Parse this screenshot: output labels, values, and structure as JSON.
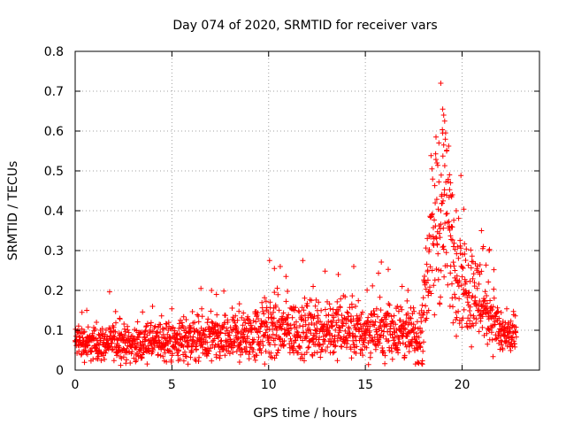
{
  "chart_data": {
    "type": "scatter",
    "title": "Day 074 of 2020, SRMTID for receiver vars",
    "xlabel": "GPS time / hours",
    "ylabel": "SRMTID / TECUs",
    "xlim": [
      0,
      24
    ],
    "ylim": [
      0,
      0.8
    ],
    "x_ticks": [
      0,
      5,
      10,
      15,
      20
    ],
    "y_ticks": [
      0,
      0.1,
      0.2,
      0.3,
      0.4,
      0.5,
      0.6,
      0.7,
      0.8
    ],
    "x_tick_labels": [
      "0",
      "5",
      "10",
      "15",
      "20"
    ],
    "y_tick_labels": [
      "0",
      "0.1",
      "0.2",
      "0.3",
      "0.4",
      "0.5",
      "0.6",
      "0.7",
      "0.8"
    ],
    "grid": true,
    "marker": "+",
    "color": "#ff0000",
    "x_data_range": [
      0,
      22.8
    ],
    "profile": [
      [
        0.0,
        0.07,
        0.03
      ],
      [
        1.0,
        0.065,
        0.03
      ],
      [
        2.0,
        0.07,
        0.03
      ],
      [
        3.0,
        0.065,
        0.03
      ],
      [
        4.0,
        0.07,
        0.03
      ],
      [
        5.0,
        0.07,
        0.035
      ],
      [
        6.0,
        0.08,
        0.045
      ],
      [
        7.0,
        0.075,
        0.04
      ],
      [
        8.0,
        0.075,
        0.04
      ],
      [
        9.0,
        0.085,
        0.045
      ],
      [
        10.0,
        0.1,
        0.06
      ],
      [
        11.0,
        0.1,
        0.055
      ],
      [
        12.0,
        0.1,
        0.05
      ],
      [
        13.0,
        0.105,
        0.055
      ],
      [
        14.0,
        0.1,
        0.05
      ],
      [
        15.0,
        0.095,
        0.05
      ],
      [
        16.0,
        0.1,
        0.05
      ],
      [
        17.0,
        0.1,
        0.05
      ],
      [
        17.8,
        0.06,
        0.04
      ],
      [
        18.2,
        0.25,
        0.12
      ],
      [
        18.6,
        0.35,
        0.16
      ],
      [
        19.0,
        0.4,
        0.16
      ],
      [
        19.4,
        0.33,
        0.14
      ],
      [
        19.8,
        0.25,
        0.1
      ],
      [
        20.2,
        0.22,
        0.09
      ],
      [
        20.8,
        0.18,
        0.08
      ],
      [
        21.5,
        0.14,
        0.06
      ],
      [
        22.0,
        0.09,
        0.04
      ],
      [
        22.8,
        0.08,
        0.03
      ]
    ],
    "points": [
      [
        18.9,
        0.72
      ],
      [
        19.0,
        0.655
      ],
      [
        19.05,
        0.64
      ],
      [
        19.1,
        0.625
      ],
      [
        19.0,
        0.595
      ],
      [
        18.65,
        0.585
      ],
      [
        18.8,
        0.57
      ],
      [
        19.05,
        0.565
      ],
      [
        19.2,
        0.55
      ],
      [
        18.7,
        0.52
      ],
      [
        19.35,
        0.49
      ],
      [
        19.4,
        0.47
      ],
      [
        19.5,
        0.44
      ],
      [
        18.9,
        0.4
      ],
      [
        19.7,
        0.4
      ],
      [
        10.05,
        0.275
      ],
      [
        10.3,
        0.255
      ],
      [
        10.6,
        0.26
      ],
      [
        10.9,
        0.235
      ],
      [
        13.6,
        0.24
      ],
      [
        14.4,
        0.26
      ],
      [
        12.3,
        0.21
      ],
      [
        6.5,
        0.205
      ],
      [
        7.05,
        0.2
      ],
      [
        7.3,
        0.19
      ],
      [
        16.9,
        0.21
      ],
      [
        17.2,
        0.2
      ],
      [
        21.0,
        0.35
      ],
      [
        21.1,
        0.31
      ],
      [
        21.4,
        0.3
      ],
      [
        0.35,
        0.145
      ],
      [
        0.6,
        0.15
      ],
      [
        1.1,
        0.12
      ],
      [
        2.3,
        0.13
      ],
      [
        4.0,
        0.16
      ],
      [
        17.95,
        0.015
      ],
      [
        17.7,
        0.02
      ],
      [
        8.5,
        0.02
      ],
      [
        3.4,
        0.03
      ],
      [
        22.6,
        0.06
      ]
    ]
  }
}
